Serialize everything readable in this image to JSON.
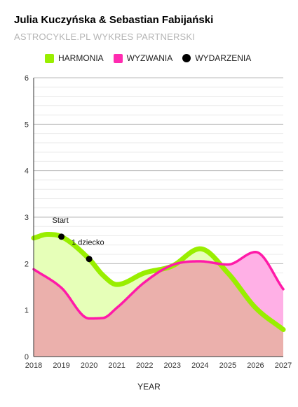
{
  "header": {
    "title": "Julia Kuczyńska & Sebastian Fabijański",
    "subtitle": "ASTROCYKLE.PL WYKRES PARTNERSKI"
  },
  "legend": [
    {
      "label": "HARMONIA",
      "color": "#99ee00",
      "shape": "square"
    },
    {
      "label": "WYZWANIA",
      "color": "#ff2bb0",
      "shape": "square"
    },
    {
      "label": "WYDARZENIA",
      "color": "#000000",
      "shape": "circle"
    }
  ],
  "chart_data": {
    "type": "area",
    "title": "Julia Kuczyńska & Sebastian Fabijański",
    "subtitle": "ASTROCYKLE.PL WYKRES PARTNERSKI",
    "xlabel": "YEAR",
    "ylabel": "",
    "xlim": [
      2018,
      2027
    ],
    "ylim": [
      0,
      6
    ],
    "x_ticks": [
      "2018",
      "2019",
      "2020",
      "2021",
      "2022",
      "2023",
      "2024",
      "2025",
      "2026",
      "2027"
    ],
    "y_ticks": [
      "0",
      "1",
      "2",
      "3",
      "4",
      "5",
      "6"
    ],
    "grid": true,
    "legend_position": "top-left",
    "series": [
      {
        "name": "HARMONIA",
        "color": "#99ee00",
        "fill": "#e6ffb8",
        "x": [
          2018,
          2018.5,
          2019,
          2020,
          2020.5,
          2021,
          2022,
          2023,
          2024,
          2025,
          2026,
          2027
        ],
        "values": [
          2.55,
          2.63,
          2.58,
          2.1,
          1.75,
          1.55,
          1.8,
          1.95,
          2.32,
          1.8,
          1.05,
          0.58
        ]
      },
      {
        "name": "WYZWANIA",
        "color": "#ff1aa8",
        "fill": "#ffb0e6",
        "x": [
          2018,
          2019,
          2020,
          2020.5,
          2021,
          2022,
          2023,
          2024,
          2025,
          2026,
          2027
        ],
        "values": [
          1.88,
          1.48,
          0.82,
          0.83,
          1.05,
          1.6,
          1.97,
          2.05,
          1.98,
          2.25,
          1.45
        ]
      }
    ],
    "overlap_fill": "#ebb0ac",
    "events": [
      {
        "x": 2019,
        "y": 2.58,
        "label": "Start"
      },
      {
        "x": 2020,
        "y": 2.1,
        "label": "1 dziecko"
      }
    ]
  }
}
